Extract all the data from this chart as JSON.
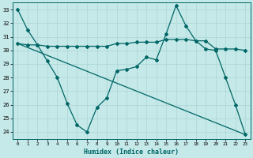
{
  "xlabel": "Humidex (Indice chaleur)",
  "bg_color": "#c5e8e8",
  "grid_color": "#b0d8d8",
  "line_color": "#006666",
  "xlim": [
    -0.5,
    23.5
  ],
  "ylim": [
    23.5,
    33.5
  ],
  "xticks": [
    0,
    1,
    2,
    3,
    4,
    5,
    6,
    7,
    8,
    9,
    10,
    11,
    12,
    13,
    14,
    15,
    16,
    17,
    18,
    19,
    20,
    21,
    22,
    23
  ],
  "yticks": [
    24,
    25,
    26,
    27,
    28,
    29,
    30,
    31,
    32,
    33
  ],
  "line1_x": [
    0,
    1,
    2,
    3,
    4,
    5,
    6,
    7,
    8,
    9,
    10,
    11,
    12,
    13,
    14,
    15,
    16,
    17,
    18,
    19,
    20,
    21,
    22,
    23
  ],
  "line1_y": [
    33.0,
    31.5,
    30.4,
    29.2,
    28.0,
    26.1,
    24.5,
    24.0,
    25.8,
    26.5,
    28.5,
    28.6,
    28.8,
    29.5,
    29.3,
    31.2,
    33.3,
    31.8,
    30.7,
    30.1,
    30.0,
    28.0,
    26.0,
    23.8
  ],
  "line2_x": [
    0,
    1,
    2,
    3,
    4,
    5,
    6,
    7,
    8,
    9,
    10,
    11,
    12,
    13,
    14,
    15,
    16,
    17,
    18,
    19,
    20,
    21,
    22,
    23
  ],
  "line2_y": [
    30.5,
    30.4,
    30.4,
    30.3,
    30.3,
    30.3,
    30.3,
    30.3,
    30.3,
    30.3,
    30.5,
    30.5,
    30.6,
    30.6,
    30.6,
    30.8,
    30.8,
    30.8,
    30.7,
    30.7,
    30.1,
    30.1,
    30.1,
    30.0
  ],
  "line3_x": [
    0,
    23
  ],
  "line3_y": [
    30.5,
    23.8
  ],
  "markersize": 2.0,
  "linewidth": 0.9
}
